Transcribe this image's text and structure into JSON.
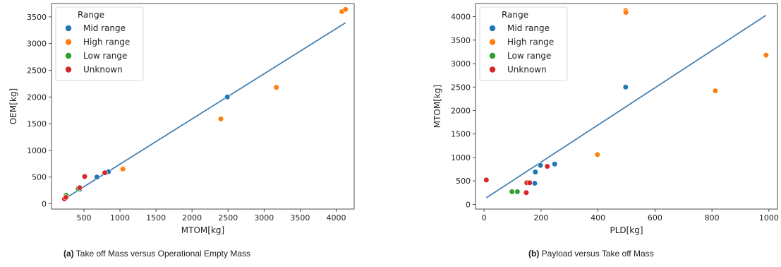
{
  "captions": [
    {
      "tag": "(a)",
      "text": "Take off Mass versus Operational Empty Mass"
    },
    {
      "tag": "(b)",
      "text": "Payload versus Take off Mass"
    }
  ],
  "chart_data": [
    {
      "type": "scatter",
      "xlabel": "MTOM[kg]",
      "ylabel": "OEM[kg]",
      "xlim": [
        50,
        4250
      ],
      "ylim": [
        -100,
        3750
      ],
      "xticks": [
        500,
        1000,
        1500,
        2000,
        2500,
        3000,
        3500,
        4000
      ],
      "yticks": [
        0,
        500,
        1000,
        1500,
        2000,
        2500,
        3000,
        3500
      ],
      "grid": false,
      "legend": {
        "title": "Range",
        "placement": "top-left"
      },
      "series": [
        {
          "name": "Mid range",
          "color": "#1f77b4",
          "points": [
            [
              440,
              270
            ],
            [
              680,
              500
            ],
            [
              840,
              600
            ],
            [
              2490,
              2000
            ]
          ]
        },
        {
          "name": "High range",
          "color": "#ff7f0e",
          "points": [
            [
              1040,
              650
            ],
            [
              2400,
              1590
            ],
            [
              3170,
              2180
            ],
            [
              4080,
              3600
            ],
            [
              4130,
              3640
            ]
          ]
        },
        {
          "name": "Low range",
          "color": "#2ca02c",
          "points": [
            [
              255,
              160
            ],
            [
              420,
              280
            ]
          ]
        },
        {
          "name": "Unknown",
          "color": "#d62728",
          "points": [
            [
              230,
              90
            ],
            [
              250,
              120
            ],
            [
              440,
              300
            ],
            [
              510,
              510
            ],
            [
              790,
              580
            ]
          ]
        }
      ],
      "fit_line": {
        "color": "#4682b4",
        "points": [
          [
            230,
            90
          ],
          [
            4130,
            3390
          ]
        ]
      }
    },
    {
      "type": "scatter",
      "xlabel": "PLD[kg]",
      "ylabel": "MTOM[kg]",
      "xlim": [
        -30,
        1030
      ],
      "ylim": [
        -100,
        4280
      ],
      "xticks": [
        0,
        200,
        400,
        600,
        800,
        1000
      ],
      "yticks": [
        0,
        500,
        1000,
        1500,
        2000,
        2500,
        3000,
        3500,
        4000
      ],
      "grid": false,
      "legend": {
        "title": "Range",
        "placement": "top-left"
      },
      "series": [
        {
          "name": "Mid range",
          "color": "#1f77b4",
          "points": [
            [
              178,
              450
            ],
            [
              180,
              690
            ],
            [
              198,
              830
            ],
            [
              248,
              860
            ],
            [
              497,
              2500
            ]
          ]
        },
        {
          "name": "High range",
          "color": "#ff7f0e",
          "points": [
            [
              398,
              1060
            ],
            [
              497,
              4130
            ],
            [
              498,
              4090
            ],
            [
              812,
              2420
            ],
            [
              990,
              3180
            ]
          ]
        },
        {
          "name": "Low range",
          "color": "#2ca02c",
          "points": [
            [
              98,
              270
            ],
            [
              117,
              270
            ]
          ]
        },
        {
          "name": "Unknown",
          "color": "#d62728",
          "points": [
            [
              8,
              520
            ],
            [
              148,
              250
            ],
            [
              150,
              460
            ],
            [
              160,
              460
            ],
            [
              222,
              810
            ]
          ]
        }
      ],
      "fit_line": {
        "color": "#4682b4",
        "points": [
          [
            8,
            140
          ],
          [
            990,
            4030
          ]
        ]
      }
    }
  ]
}
